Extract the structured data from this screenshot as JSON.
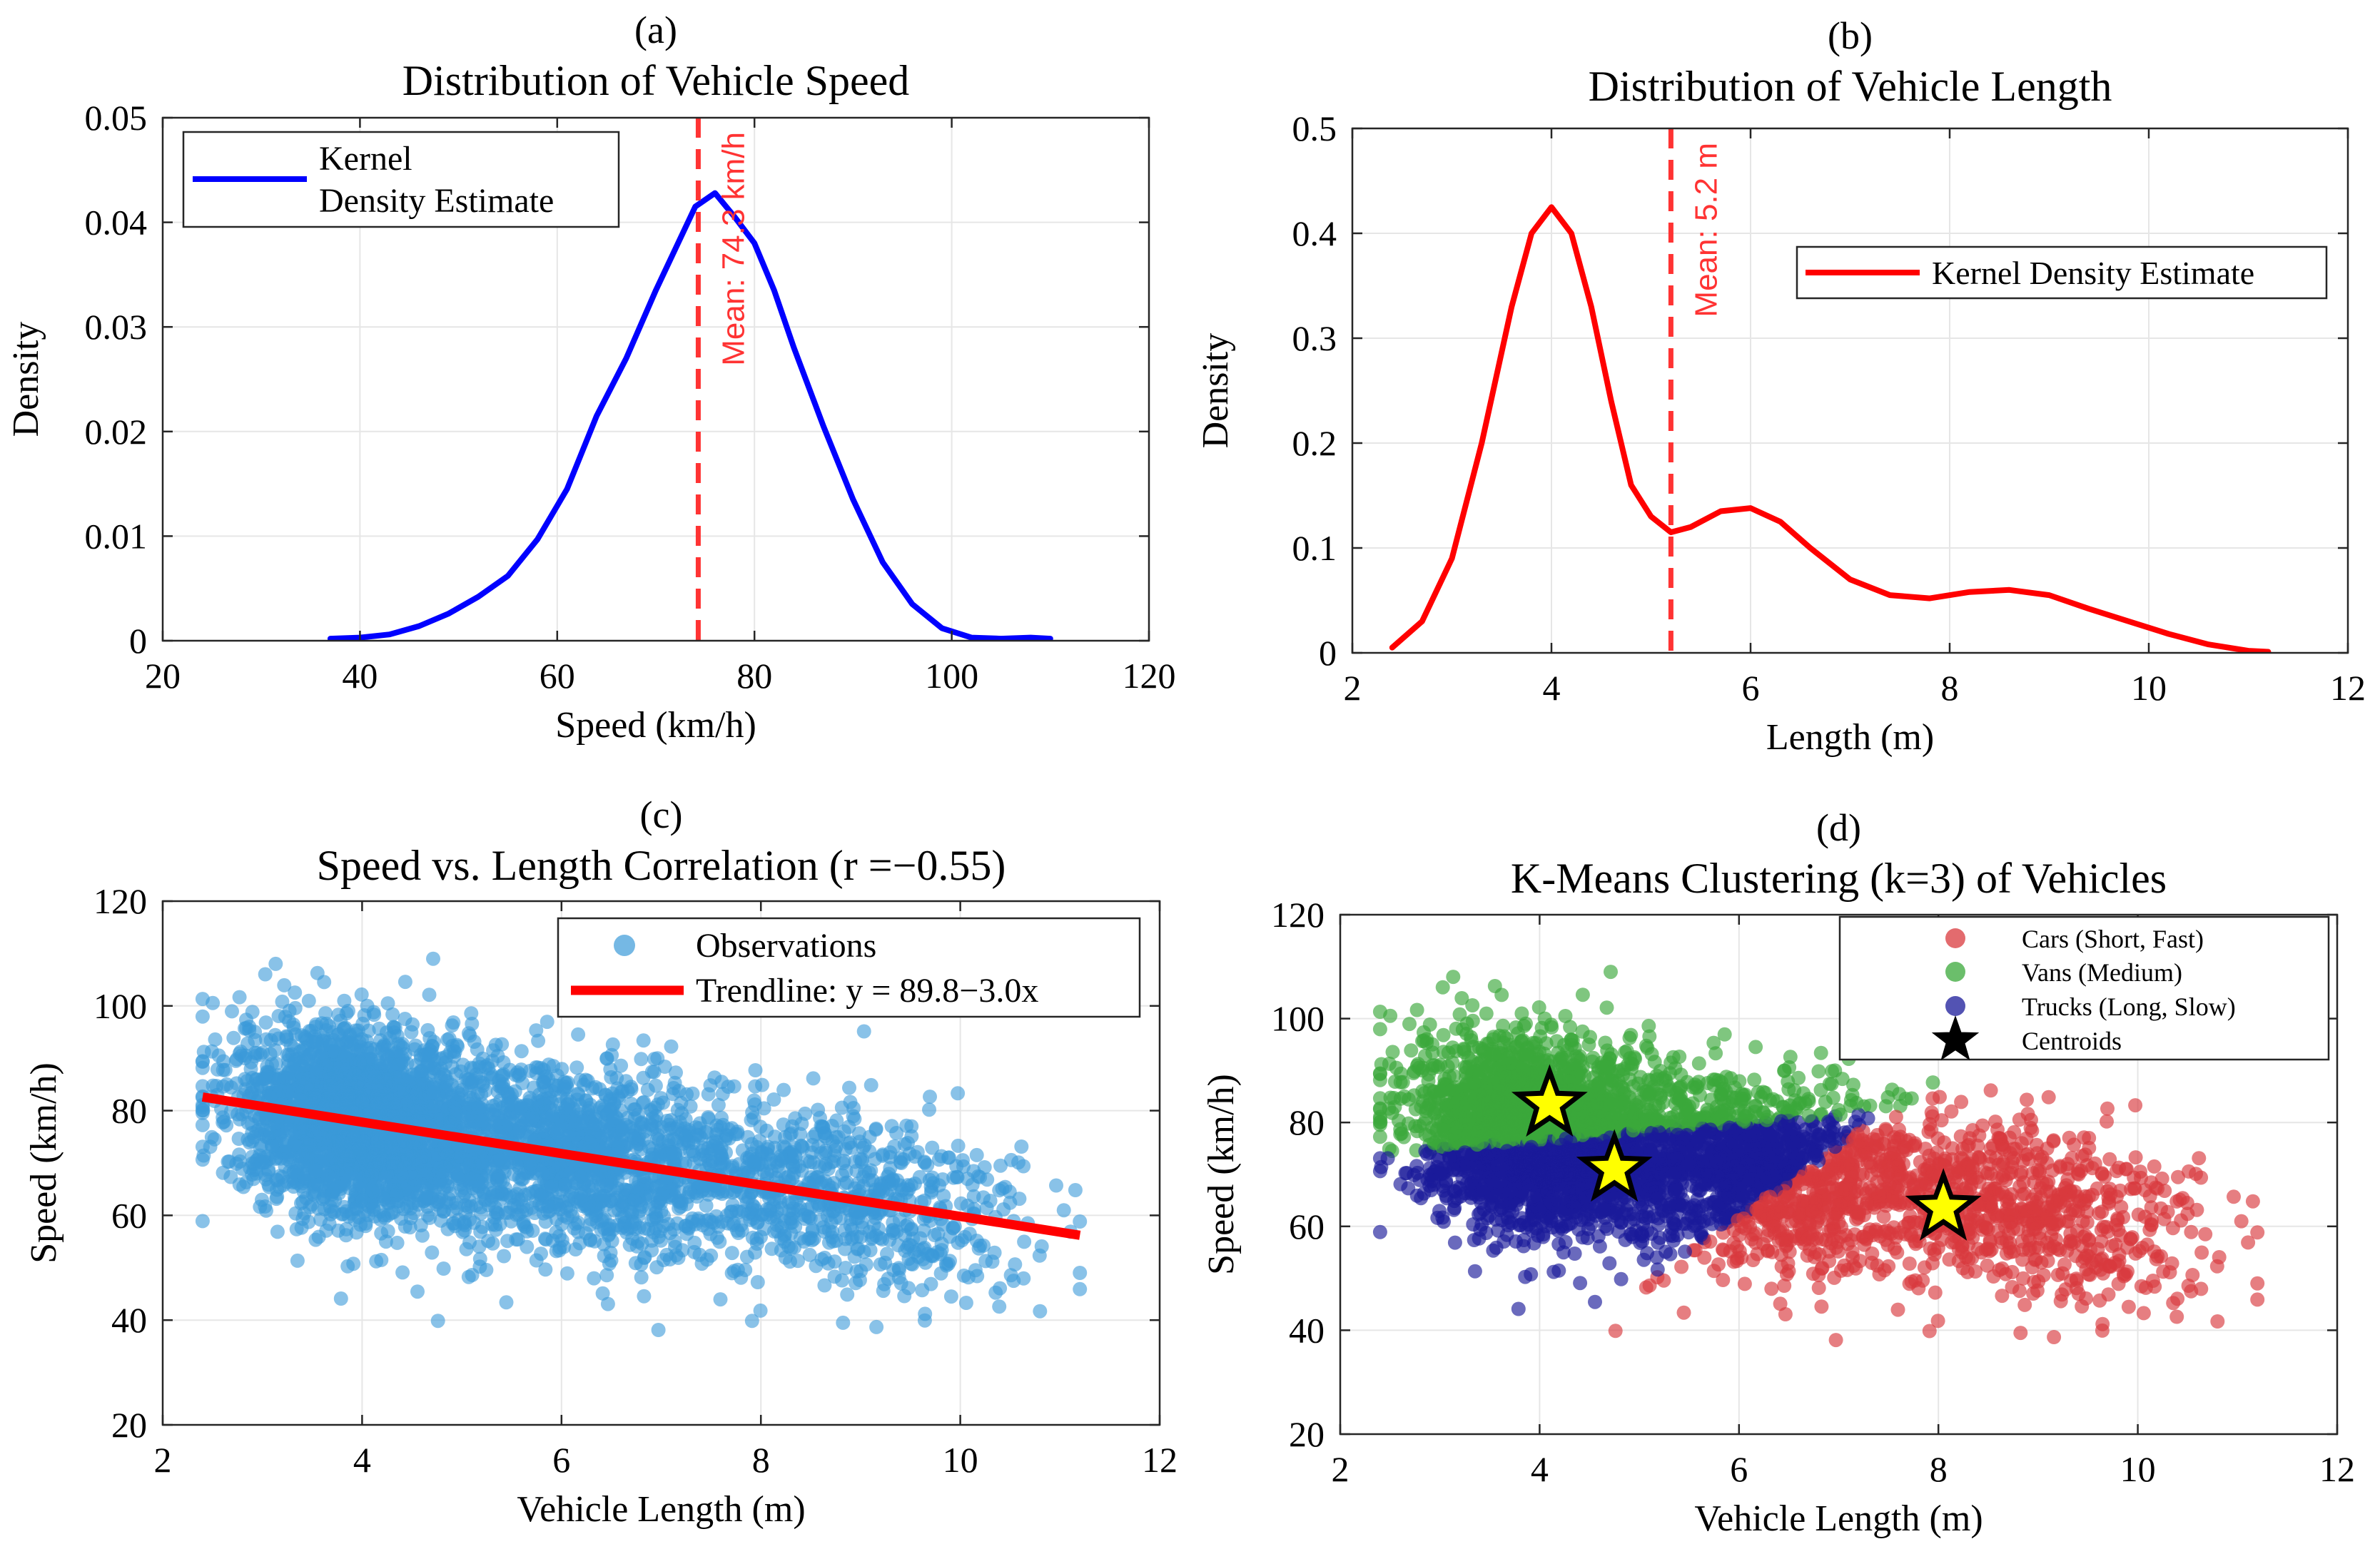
{
  "chart_data": [
    {
      "type": "line",
      "panel_label": "(a)",
      "title": "Distribution of Vehicle Speed",
      "xlabel": "Speed (km/h)",
      "ylabel": "Density",
      "xlim": [
        20,
        120
      ],
      "ylim": [
        0,
        0.05
      ],
      "xticks": [
        20,
        40,
        60,
        80,
        100,
        120
      ],
      "yticks": [
        0,
        0.01,
        0.02,
        0.03,
        0.04,
        0.05
      ],
      "grid": true,
      "legend_position": "top-left",
      "series": [
        {
          "name": "Kernel Density Estimate",
          "legend_lines": [
            "Kernel",
            "Density Estimate"
          ],
          "color": "#0000ff",
          "x": [
            37,
            40,
            43,
            46,
            49,
            52,
            55,
            58,
            61,
            64,
            67,
            70,
            72,
            74,
            76,
            78,
            80,
            82,
            84,
            87,
            90,
            93,
            96,
            99,
            102,
            105,
            108,
            110
          ],
          "y": [
            0.0002,
            0.0003,
            0.0006,
            0.0014,
            0.0026,
            0.0042,
            0.0062,
            0.0097,
            0.0145,
            0.0215,
            0.027,
            0.0335,
            0.0375,
            0.0415,
            0.0428,
            0.0405,
            0.038,
            0.0335,
            0.028,
            0.0205,
            0.0135,
            0.0075,
            0.0035,
            0.0012,
            0.0003,
            0.0002,
            0.0003,
            0.0002
          ]
        }
      ],
      "annotations": [
        {
          "type": "vline",
          "x": 74.3,
          "color": "#ff3333",
          "dashed": true,
          "label": "Mean: 74.3 km/h"
        }
      ]
    },
    {
      "type": "line",
      "panel_label": "(b)",
      "title": "Distribution of Vehicle Length",
      "xlabel": "Length (m)",
      "ylabel": "Density",
      "xlim": [
        2,
        12
      ],
      "ylim": [
        0,
        0.5
      ],
      "xticks": [
        2,
        4,
        6,
        8,
        10,
        12
      ],
      "yticks": [
        0,
        0.1,
        0.2,
        0.3,
        0.4,
        0.5
      ],
      "grid": true,
      "legend_position": "top-right",
      "series": [
        {
          "name": "Kernel Density Estimate",
          "color": "#ff0000",
          "x": [
            2.4,
            2.7,
            3.0,
            3.3,
            3.6,
            3.8,
            4.0,
            4.2,
            4.4,
            4.6,
            4.8,
            5.0,
            5.2,
            5.4,
            5.7,
            6.0,
            6.3,
            6.6,
            7.0,
            7.4,
            7.8,
            8.2,
            8.6,
            9.0,
            9.4,
            9.8,
            10.2,
            10.6,
            11.0,
            11.2
          ],
          "y": [
            0.005,
            0.03,
            0.09,
            0.2,
            0.33,
            0.4,
            0.425,
            0.4,
            0.33,
            0.24,
            0.16,
            0.13,
            0.115,
            0.12,
            0.135,
            0.138,
            0.125,
            0.1,
            0.07,
            0.055,
            0.052,
            0.058,
            0.06,
            0.055,
            0.042,
            0.03,
            0.018,
            0.008,
            0.002,
            0.001
          ]
        }
      ],
      "annotations": [
        {
          "type": "vline",
          "x": 5.2,
          "color": "#ff3333",
          "dashed": true,
          "label": "Mean: 5.2 m"
        }
      ]
    },
    {
      "type": "scatter",
      "panel_label": "(c)",
      "title": "Speed vs. Length Correlation (r =−0.55)",
      "xlabel": "Vehicle Length (m)",
      "ylabel": "Speed (km/h)",
      "xlim": [
        2,
        12
      ],
      "ylim": [
        20,
        120
      ],
      "xticks": [
        2,
        4,
        6,
        8,
        10,
        12
      ],
      "yticks": [
        20,
        40,
        60,
        80,
        100,
        120
      ],
      "grid": true,
      "legend_position": "top-right",
      "series": [
        {
          "name": "Observations",
          "color": "#3a9ad9",
          "kind": "points",
          "n": 5000,
          "x_range": [
            2.4,
            11.2
          ],
          "y_range": [
            37,
            110
          ]
        },
        {
          "name": "Trendline: y = 89.8−3.0x",
          "color": "#ff0000",
          "kind": "line",
          "x": [
            2.4,
            11.2
          ],
          "y": [
            82.6,
            56.2
          ]
        }
      ]
    },
    {
      "type": "scatter",
      "panel_label": "(d)",
      "title": "K-Means Clustering (k=3) of Vehicles",
      "xlabel": "Vehicle Length (m)",
      "ylabel": "Speed (km/h)",
      "xlim": [
        2,
        12
      ],
      "ylim": [
        20,
        120
      ],
      "xticks": [
        2,
        4,
        6,
        8,
        10,
        12
      ],
      "yticks": [
        20,
        40,
        60,
        80,
        100,
        120
      ],
      "grid": true,
      "legend_position": "top-right",
      "series": [
        {
          "name": "Cars (Short, Fast)",
          "color": "#d9393e",
          "kind": "points"
        },
        {
          "name": "Vans (Medium)",
          "color": "#3aa83a",
          "kind": "points"
        },
        {
          "name": "Trucks (Long, Slow)",
          "color": "#1a1a9a",
          "kind": "points"
        },
        {
          "name": "Centroids",
          "color": "#ffff00",
          "kind": "stars",
          "x": [
            8.05,
            4.1,
            4.75
          ],
          "y": [
            63.5,
            83.5,
            71
          ]
        }
      ]
    }
  ]
}
